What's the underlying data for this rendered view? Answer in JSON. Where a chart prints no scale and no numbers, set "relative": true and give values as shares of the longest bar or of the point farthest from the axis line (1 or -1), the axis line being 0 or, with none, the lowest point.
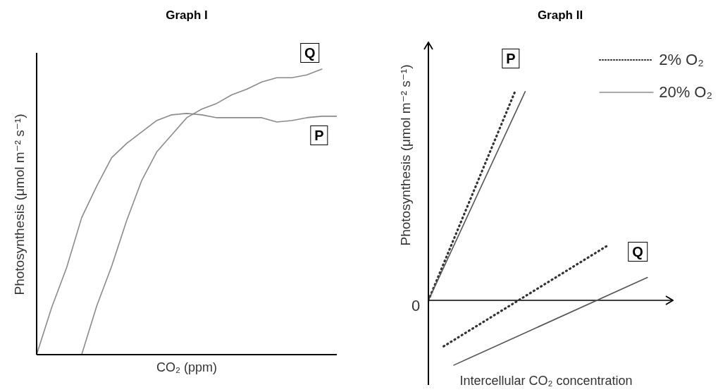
{
  "chart_data": [
    {
      "type": "line",
      "title": "Graph I",
      "xlabel": "CO₂ (ppm)",
      "ylabel": "Photosynthesis (μmol m⁻² s⁻¹)",
      "relative": true,
      "line_style": "solid",
      "categories": [
        null,
        null,
        null,
        null,
        null,
        null,
        null,
        null,
        null,
        null,
        null,
        null,
        null,
        null,
        null,
        null,
        null,
        null,
        null,
        null,
        null
      ],
      "series": [
        {
          "name": "P",
          "color": "#8a8a8a",
          "values": [
            0,
            0.165,
            0.305,
            0.48,
            0.59,
            0.69,
            0.74,
            0.78,
            0.82,
            0.84,
            0.845,
            0.84,
            0.83,
            0.83,
            0.83,
            0.83,
            0.815,
            0.82,
            0.83,
            0.835,
            0.835
          ]
        },
        {
          "name": "Q",
          "color": "#8a8a8a",
          "values": [
            null,
            null,
            null,
            0,
            0.17,
            0.31,
            0.47,
            0.61,
            0.71,
            0.77,
            0.83,
            0.86,
            0.88,
            0.91,
            0.93,
            0.955,
            0.97,
            0.97,
            0.98,
            1.0,
            null
          ]
        }
      ]
    },
    {
      "type": "line",
      "title": "Graph II",
      "xlabel": "Intercellular CO₂ concentration",
      "ylabel": "Photosynthesis (μmol m⁻² s⁻¹)",
      "relative": true,
      "legend": "top right",
      "annotations": [
        "0",
        "P",
        "Q"
      ],
      "categories": [
        null,
        null,
        null,
        null,
        null,
        null,
        null,
        null,
        null,
        null,
        null,
        null,
        null,
        null,
        null,
        null,
        null,
        null,
        null,
        null,
        null,
        null,
        null,
        null,
        null,
        null,
        null,
        null,
        null,
        null,
        null,
        null,
        null,
        null,
        null,
        null,
        null,
        null,
        null,
        null,
        null,
        null,
        null,
        null,
        null,
        null,
        null,
        null,
        null
      ],
      "series": [
        {
          "name": "2% O₂",
          "color": "#333333",
          "line_style": "dotted",
          "values": [
            0,
            null,
            null,
            null,
            null,
            null,
            null,
            null,
            null,
            null,
            null,
            null,
            null,
            null,
            null,
            null,
            null,
            1,
            null,
            null,
            null,
            null,
            null,
            null,
            null,
            null,
            null,
            null,
            null,
            null,
            null,
            null,
            null,
            null,
            null,
            null,
            null,
            null,
            null,
            null,
            null,
            null,
            null,
            null,
            null,
            null,
            null,
            null,
            null
          ]
        },
        {
          "name": "20% O₂",
          "color": "#555555",
          "line_style": "solid",
          "values": [
            0,
            null,
            null,
            null,
            null,
            null,
            null,
            null,
            null,
            null,
            null,
            null,
            null,
            null,
            null,
            null,
            null,
            null,
            null,
            1,
            null,
            null,
            null,
            null,
            null,
            null,
            null,
            null,
            null,
            null,
            null,
            null,
            null,
            null,
            null,
            null,
            null,
            null,
            null,
            null,
            null,
            null,
            null,
            null,
            null,
            null,
            null,
            null,
            null
          ]
        },
        {
          "color": "#333333",
          "line_style": "dotted",
          "values": [
            null,
            null,
            null,
            -0.22,
            null,
            null,
            null,
            null,
            null,
            null,
            null,
            null,
            null,
            null,
            null,
            null,
            null,
            null,
            null,
            null,
            null,
            null,
            null,
            null,
            null,
            null,
            null,
            null,
            null,
            null,
            null,
            null,
            null,
            null,
            null,
            0.26,
            null,
            null,
            null,
            null,
            null,
            null,
            null,
            null,
            null,
            null,
            null,
            null,
            null
          ]
        },
        {
          "color": "#555555",
          "line_style": "solid",
          "values": [
            null,
            null,
            null,
            null,
            null,
            -0.31,
            null,
            null,
            null,
            null,
            null,
            null,
            null,
            null,
            null,
            null,
            null,
            null,
            null,
            null,
            null,
            null,
            null,
            null,
            null,
            null,
            null,
            null,
            null,
            null,
            null,
            null,
            null,
            null,
            null,
            null,
            null,
            null,
            null,
            null,
            null,
            null,
            null,
            0.11,
            null,
            null,
            null,
            null,
            null
          ]
        }
      ]
    }
  ]
}
